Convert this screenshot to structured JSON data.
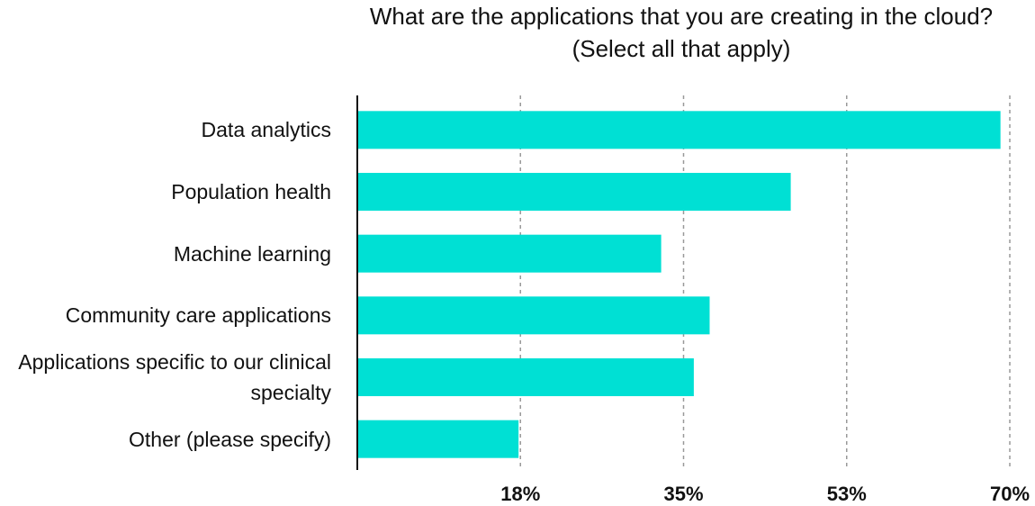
{
  "chart_data": {
    "type": "bar",
    "orientation": "horizontal",
    "title": "What are the applications that you are creating in the cloud? (Select all that apply)",
    "categories": [
      "Data analytics",
      "Population health",
      "Machine learning",
      "Community care applications",
      "Applications specific to our clinical specialty",
      "Other (please specify)"
    ],
    "values": [
      69,
      46.5,
      32.6,
      37.8,
      36.1,
      17.3
    ],
    "color": "#00e0d4",
    "xlim": [
      0,
      70
    ],
    "xticks": [
      {
        "value": 17.5,
        "label": "18%"
      },
      {
        "value": 35,
        "label": "35%"
      },
      {
        "value": 52.5,
        "label": "53%"
      },
      {
        "value": 70,
        "label": "70%"
      }
    ],
    "grid": true
  }
}
